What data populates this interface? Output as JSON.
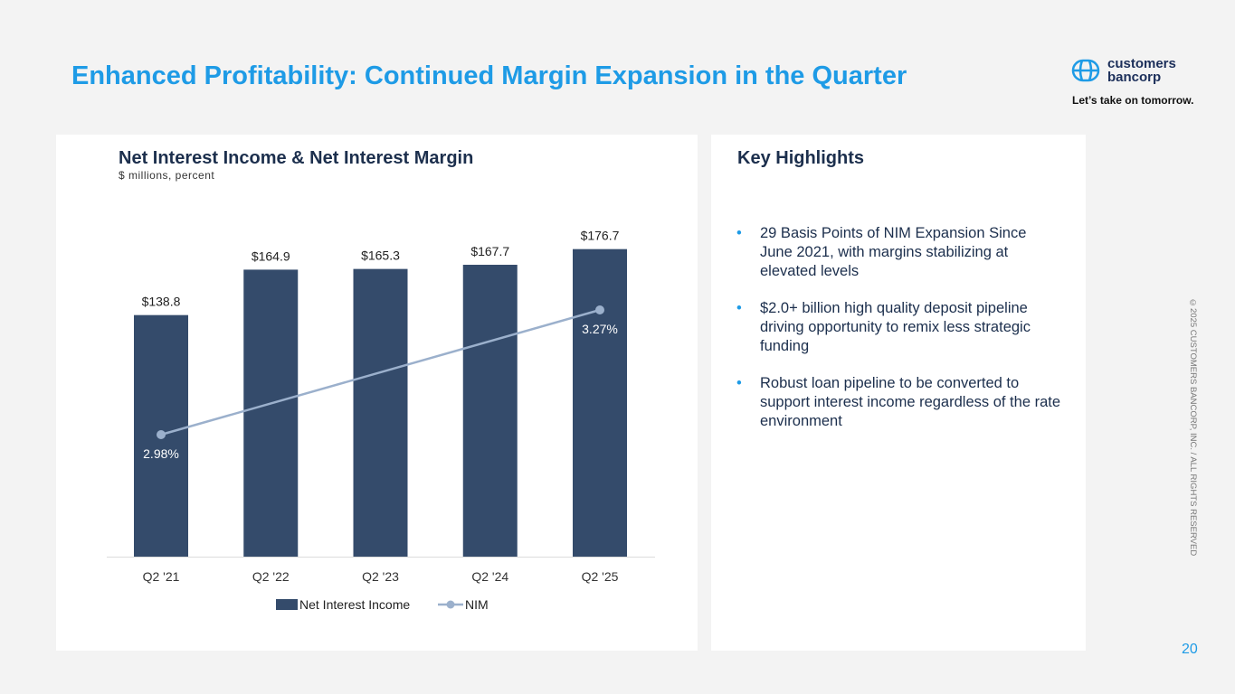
{
  "title": "Enhanced Profitability: Continued Margin Expansion in the Quarter",
  "logo": {
    "line1": "customers",
    "line2": "bancorp",
    "tagline": "Let’s take on tomorrow."
  },
  "chart_data": {
    "type": "bar",
    "title": "Net Interest Income & Net Interest Margin",
    "subtitle": "$ millions, percent",
    "categories": [
      "Q2 '21",
      "Q2 '22",
      "Q2 '23",
      "Q2 '24",
      "Q2 '25"
    ],
    "series": [
      {
        "name": "Net Interest Income",
        "type": "bar",
        "color": "#344b6b",
        "values": [
          138.8,
          164.9,
          165.3,
          167.7,
          176.7
        ],
        "labels": [
          "$138.8",
          "$164.9",
          "$165.3",
          "$167.7",
          "$176.7"
        ]
      },
      {
        "name": "NIM",
        "type": "line",
        "color": "#9bb0cc",
        "values": [
          2.98,
          null,
          null,
          null,
          3.27
        ],
        "labels": [
          "2.98%",
          "",
          "",
          "",
          "3.27%"
        ]
      }
    ],
    "legend": "bottom"
  },
  "highlights": {
    "title": "Key Highlights",
    "items": [
      "29 Basis Points of NIM Expansion Since June 2021, with margins stabilizing at elevated levels",
      "$2.0+ billion high quality deposit pipeline driving opportunity to remix less strategic funding",
      "Robust loan pipeline to be converted to support interest income regardless of the rate environment"
    ]
  },
  "copyright": "©2025 CUSTOMERS BANCORP, INC. / ALL RIGHTS RESERVED",
  "page_number": "20"
}
